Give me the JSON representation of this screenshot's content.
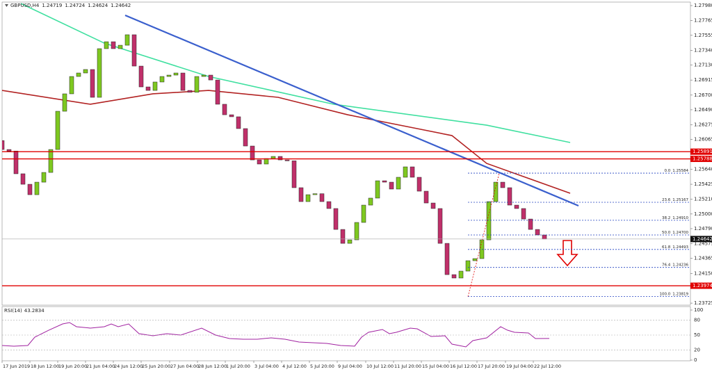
{
  "chart_data": [
    {
      "type": "candlestick",
      "title": "GBPUSD,H4",
      "header_values": [
        1.24719,
        1.24724,
        1.24624,
        1.24642
      ],
      "x": [
        0,
        1,
        2,
        3,
        4,
        5,
        6,
        7,
        8,
        9,
        10,
        11,
        12,
        13,
        14,
        15,
        16,
        17,
        18,
        19,
        20,
        21,
        22,
        23,
        24,
        25,
        26,
        27,
        28,
        29,
        30,
        31,
        32,
        33,
        34,
        35,
        36,
        37,
        38,
        39,
        40,
        41,
        42,
        43,
        44,
        45,
        46,
        47,
        48,
        49,
        50,
        51,
        52,
        53,
        54,
        55,
        56,
        57,
        58,
        59,
        60,
        61,
        62,
        63,
        64,
        65,
        66,
        67,
        68,
        69,
        70,
        71,
        72,
        73,
        74,
        75,
        76,
        77,
        78
      ],
      "open": [
        1.2605,
        1.25922,
        1.259,
        1.25575,
        1.25425,
        1.25276,
        1.25455,
        1.25594,
        1.25922,
        1.26469,
        1.26718,
        1.26966,
        1.27016,
        1.27066,
        1.26668,
        1.27364,
        1.27463,
        1.27364,
        1.27413,
        1.27563,
        1.27115,
        1.26817,
        1.26767,
        1.26887,
        1.26966,
        1.26986,
        1.27016,
        1.26767,
        1.2674,
        1.26966,
        1.26986,
        1.26916,
        1.26569,
        1.26419,
        1.2639,
        1.26221,
        1.25972,
        1.25773,
        1.25714,
        1.25793,
        1.25823,
        1.25773,
        1.2576,
        1.25376,
        1.25177,
        1.25276,
        1.2529,
        1.25177,
        1.25078,
        1.24779,
        1.2458,
        1.2463,
        1.24879,
        1.25127,
        1.25227,
        1.25475,
        1.25455,
        1.25356,
        1.25525,
        1.25674,
        1.25525,
        1.25326,
        1.25157,
        1.25078,
        1.2458,
        1.24133,
        1.24084,
        1.24183,
        1.24332,
        1.24362,
        1.2463,
        1.25177,
        1.25455,
        1.25376,
        1.25127,
        1.25078,
        1.24928,
        1.24779,
        1.247
      ],
      "close": [
        1.25922,
        1.259,
        1.25575,
        1.25425,
        1.25276,
        1.25455,
        1.25594,
        1.25922,
        1.26469,
        1.26718,
        1.26966,
        1.27016,
        1.27066,
        1.26668,
        1.27364,
        1.27463,
        1.27364,
        1.27413,
        1.27563,
        1.27115,
        1.26817,
        1.26767,
        1.26887,
        1.26966,
        1.26986,
        1.27016,
        1.26767,
        1.2674,
        1.26966,
        1.26986,
        1.26916,
        1.26569,
        1.26419,
        1.2639,
        1.26221,
        1.25972,
        1.25773,
        1.25714,
        1.25793,
        1.25823,
        1.25773,
        1.2576,
        1.25376,
        1.25177,
        1.25276,
        1.2529,
        1.25177,
        1.25078,
        1.24779,
        1.2458,
        1.2463,
        1.24879,
        1.25127,
        1.25227,
        1.25475,
        1.25455,
        1.25356,
        1.25525,
        1.25674,
        1.25525,
        1.25326,
        1.25157,
        1.25078,
        1.2458,
        1.24133,
        1.24084,
        1.24183,
        1.24332,
        1.24362,
        1.2463,
        1.25177,
        1.25455,
        1.25376,
        1.25127,
        1.25078,
        1.24928,
        1.24779,
        1.247,
        1.24642
      ],
      "up_color": "#7ec820",
      "down_color": "#c0306a",
      "xlim": [
        0,
        99
      ],
      "ylim": [
        1.23696,
        1.2802
      ],
      "yticks": [
        {
          "value": 1.2798,
          "label": "1.27980"
        },
        1.27765,
        1.27555,
        {
          "value": 1.2734,
          "label": "1.27340"
        },
        {
          "value": 1.2713,
          "label": "1.27130"
        },
        1.26915,
        {
          "value": 1.267,
          "label": "1.26700"
        },
        {
          "value": 1.2649,
          "label": "1.26490"
        },
        1.26275,
        1.26065,
        {
          "value": 1.2564,
          "label": "1.25640"
        },
        1.25425,
        {
          "value": 1.2521,
          "label": "1.25210"
        },
        {
          "value": 1.25,
          "label": "1.25000"
        },
        {
          "value": 1.2479,
          "label": "1.24790"
        },
        1.24575,
        1.24365,
        {
          "value": 1.2415,
          "label": "1.24150"
        },
        1.23725
      ],
      "xticks": [
        {
          "value": 0,
          "label": "17 Jun 2019"
        },
        {
          "value": 4,
          "label": "18 Jun 12:00"
        },
        {
          "value": 8,
          "label": "19 Jun 20:00"
        },
        {
          "value": 12,
          "label": "21 Jun 04:00"
        },
        {
          "value": 16,
          "label": "24 Jun 12:00"
        },
        {
          "value": 20,
          "label": "25 Jun 20:00"
        },
        {
          "value": 24.1,
          "label": "27 Jun 04:00"
        },
        {
          "value": 28.1,
          "label": "28 Jun 12:00"
        },
        {
          "value": 32.1,
          "label": "1 Jul 20:00"
        },
        {
          "value": 36.2,
          "label": "3 Jul 04:00"
        },
        {
          "value": 40.2,
          "label": "4 Jul 12:00"
        },
        {
          "value": 44.2,
          "label": "5 Jul 20:00"
        },
        {
          "value": 48.2,
          "label": "9 Jul 04:00"
        },
        {
          "value": 52.3,
          "label": "10 Jul 12:00"
        },
        {
          "value": 56.3,
          "label": "11 Jul 20:00"
        },
        {
          "value": 60.3,
          "label": "15 Jul 04:00"
        },
        {
          "value": 64.3,
          "label": "16 Jul 12:00"
        },
        {
          "value": 68.3,
          "label": "17 Jul 20:00"
        },
        {
          "value": 72.4,
          "label": "19 Jul 04:00"
        },
        {
          "value": 76.4,
          "label": "22 Jul 12:00"
        }
      ],
      "overlays": [
        {
          "color": "#40e0a0",
          "x": [
            2.7,
            14.7,
            29.7,
            47.7,
            69.7,
            81.7
          ],
          "values": [
            1.2801,
            1.27443,
            1.26966,
            1.26569,
            1.2627,
            1.26022
          ]
        },
        {
          "color": "#b22222",
          "x": [
            0,
            12.7,
            21.7,
            29.7,
            39.7,
            49.7,
            59.7,
            64.7,
            69.7,
            81.7
          ],
          "values": [
            1.26767,
            1.26569,
            1.26718,
            1.26767,
            1.26668,
            1.26419,
            1.26221,
            1.26121,
            1.25723,
            1.25296
          ]
        }
      ],
      "trendline": {
        "color": "#3a5fcd",
        "x": [
          17.7,
          82.9
        ],
        "values": [
          1.27841,
          1.25117
        ]
      },
      "levels": [
        1.25891,
        1.25788,
        1.23974
      ],
      "level_color": "#e00000",
      "current_price": 1.24642,
      "fib_x": [
        67,
        71.5
      ],
      "fib_color": "#2040c0",
      "fib_levels": [
        {
          "ratio": "0.0",
          "price": 1.25584
        },
        {
          "ratio": "23.6",
          "price": 1.25167
        },
        {
          "ratio": "38.2",
          "price": {
            "value": 1.2491,
            "label": "1.24910"
          }
        },
        {
          "ratio": "50.0",
          "price": {
            "value": 1.247,
            "label": "1.24700"
          }
        },
        {
          "ratio": "61.8",
          "price": 1.24493
        },
        {
          "ratio": "76.4",
          "price": 1.24236
        },
        {
          "ratio": "100.0",
          "price": 1.23819
        }
      ]
    },
    {
      "type": "line",
      "title": "RSI(14)",
      "color": "#a020a0",
      "x": [
        0,
        1.7,
        3.7,
        4.7,
        6.7,
        8.7,
        9.7,
        10.7,
        12.7,
        14.7,
        15.7,
        16.7,
        18.2,
        19.7,
        21.7,
        23.7,
        25.7,
        28.7,
        30.7,
        32.7,
        34.7,
        36.7,
        38.7,
        40.7,
        42.7,
        44.7,
        46.7,
        48.7,
        50.7,
        51.7,
        52.7,
        54.7,
        55.7,
        56.7,
        58.7,
        59.7,
        61.7,
        63.7,
        64.7,
        66.7,
        67.7,
        69.7,
        71.7,
        72.7,
        73.7,
        75.7,
        76.7,
        78.7
      ],
      "values": [
        29.2,
        27.8,
        29.2,
        45.8,
        59.7,
        72.2,
        75,
        66.7,
        63.9,
        66.7,
        72.2,
        66.7,
        72.2,
        52.8,
        48.6,
        52.8,
        50,
        63.9,
        50,
        43.1,
        41.7,
        41.7,
        44.4,
        41.7,
        36.1,
        34.7,
        33.3,
        29.2,
        27.8,
        45.8,
        55.6,
        61.1,
        52.8,
        55.6,
        63.9,
        62.5,
        47.2,
        48.6,
        31.9,
        26.4,
        38.9,
        44.4,
        66.7,
        59.7,
        55.6,
        54.2,
        43.1,
        43.2834
      ],
      "xlim": [
        0,
        99
      ],
      "ylim": [
        0,
        100
      ],
      "yticks": [
        100,
        80,
        50,
        20,
        0
      ]
    }
  ]
}
